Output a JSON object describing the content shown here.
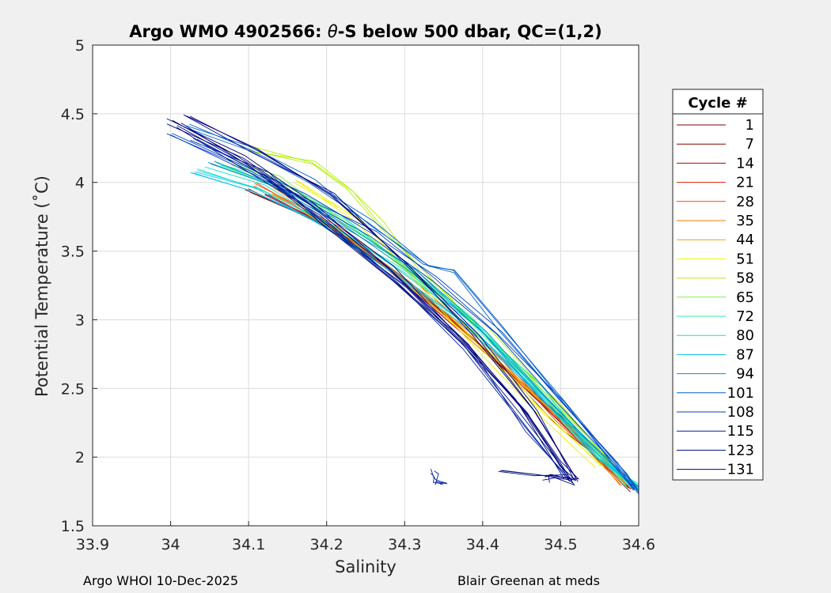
{
  "chart_data": {
    "type": "line",
    "title_prefix": "Argo WMO 4902566: ",
    "title_theta": "θ",
    "title_suffix": "-S below 500 dbar,  QC=(1,2)",
    "xlabel": "Salinity",
    "ylabel": "Potential Temperature (˚C)",
    "xlim": [
      33.9,
      34.6
    ],
    "ylim": [
      1.5,
      5.0
    ],
    "xticks": [
      "33.9",
      "34",
      "34.1",
      "34.2",
      "34.3",
      "34.4",
      "34.5",
      "34.6"
    ],
    "yticks": [
      "1.5",
      "2",
      "2.5",
      "3",
      "3.5",
      "4",
      "4.5",
      "5"
    ],
    "grid": true,
    "legend_title": "Cycle #",
    "legend_position": "right",
    "series": [
      {
        "name": "1",
        "color": "#800000"
      },
      {
        "name": "7",
        "color": "#8b0000"
      },
      {
        "name": "14",
        "color": "#b00000"
      },
      {
        "name": "21",
        "color": "#d42000"
      },
      {
        "name": "28",
        "color": "#e85000"
      },
      {
        "name": "35",
        "color": "#f07800"
      },
      {
        "name": "44",
        "color": "#f0a000"
      },
      {
        "name": "51",
        "color": "#f2f200"
      },
      {
        "name": "58",
        "color": "#b4f000"
      },
      {
        "name": "65",
        "color": "#7cf050"
      },
      {
        "name": "72",
        "color": "#30f0a0"
      },
      {
        "name": "80",
        "color": "#10e0d0"
      },
      {
        "name": "87",
        "color": "#00c0f0"
      },
      {
        "name": "94",
        "color": "#0090c8"
      },
      {
        "name": "101",
        "color": "#0060d0"
      },
      {
        "name": "108",
        "color": "#0040c8"
      },
      {
        "name": "115",
        "color": "#0020a8"
      },
      {
        "name": "123",
        "color": "#001080"
      },
      {
        "name": "131",
        "color": "#000080"
      }
    ],
    "curves": [
      {
        "color": "#800000",
        "s": [
          34.1,
          34.2,
          34.3,
          34.4,
          34.5,
          34.59
        ],
        "t": [
          3.95,
          3.7,
          3.3,
          2.8,
          2.25,
          1.76
        ]
      },
      {
        "color": "#b00000",
        "s": [
          34.12,
          34.22,
          34.32,
          34.42,
          34.52,
          34.59
        ],
        "t": [
          3.92,
          3.62,
          3.2,
          2.7,
          2.2,
          1.78
        ]
      },
      {
        "color": "#e85000",
        "s": [
          34.11,
          34.21,
          34.31,
          34.41,
          34.5,
          34.58
        ],
        "t": [
          3.98,
          3.66,
          3.25,
          2.78,
          2.28,
          1.8
        ]
      },
      {
        "color": "#f0a000",
        "s": [
          34.13,
          34.23,
          34.33,
          34.43,
          34.52,
          34.58
        ],
        "t": [
          3.94,
          3.6,
          3.17,
          2.67,
          2.17,
          1.82
        ]
      },
      {
        "color": "#f2f200",
        "s": [
          34.16,
          34.24,
          34.31,
          34.39,
          34.47,
          34.55
        ],
        "t": [
          4.0,
          3.72,
          3.32,
          2.85,
          2.35,
          1.92
        ]
      },
      {
        "color": "#b4f000",
        "s": [
          34.1,
          34.18,
          34.23,
          34.27,
          34.32,
          34.4,
          34.5,
          34.58
        ],
        "t": [
          4.25,
          4.15,
          3.95,
          3.7,
          3.35,
          2.95,
          2.4,
          1.85
        ]
      },
      {
        "color": "#7cf050",
        "s": [
          34.08,
          34.14,
          34.2,
          34.28,
          34.36,
          34.45,
          34.54,
          34.59
        ],
        "t": [
          4.15,
          4.02,
          3.8,
          3.48,
          3.08,
          2.62,
          2.1,
          1.79
        ]
      },
      {
        "color": "#30f0a0",
        "s": [
          34.06,
          34.14,
          34.22,
          34.3,
          34.38,
          34.46,
          34.54,
          34.59
        ],
        "t": [
          4.12,
          3.98,
          3.74,
          3.42,
          3.02,
          2.56,
          2.06,
          1.8
        ]
      },
      {
        "color": "#10e0d0",
        "s": [
          34.04,
          34.12,
          34.21,
          34.3,
          34.39,
          34.47,
          34.55,
          34.6
        ],
        "t": [
          4.1,
          3.96,
          3.7,
          3.36,
          2.96,
          2.5,
          2.02,
          1.78
        ]
      },
      {
        "color": "#00c0f0",
        "s": [
          34.03,
          34.11,
          34.2,
          34.29,
          34.38,
          34.47,
          34.55,
          34.6
        ],
        "t": [
          4.08,
          3.94,
          3.68,
          3.34,
          2.94,
          2.48,
          2.0,
          1.79
        ]
      },
      {
        "color": "#0090c8",
        "s": [
          34.05,
          34.13,
          34.22,
          34.31,
          34.4,
          34.48,
          34.56,
          34.6
        ],
        "t": [
          4.14,
          3.99,
          3.72,
          3.35,
          2.92,
          2.44,
          1.98,
          1.78
        ]
      },
      {
        "color": "#0060d0",
        "s": [
          34.02,
          34.1,
          34.18,
          34.26,
          34.33,
          34.36,
          34.42,
          34.5,
          34.58,
          34.61
        ],
        "t": [
          4.4,
          4.25,
          4.0,
          3.7,
          3.4,
          3.35,
          2.95,
          2.4,
          1.9,
          1.75
        ]
      },
      {
        "color": "#0040c8",
        "s": [
          34.0,
          34.08,
          34.17,
          34.26,
          34.34,
          34.42,
          34.5,
          34.57,
          34.6
        ],
        "t": [
          4.35,
          4.15,
          3.9,
          3.62,
          3.3,
          2.9,
          2.4,
          1.95,
          1.78
        ]
      },
      {
        "color": "#0020a8",
        "s": [
          34.03,
          34.12,
          34.2,
          34.3,
          34.38,
          34.46,
          34.51,
          34.52
        ],
        "t": [
          4.3,
          4.05,
          3.7,
          3.25,
          2.8,
          2.2,
          1.85,
          1.82
        ]
      },
      {
        "color": "#001080",
        "s": [
          34.01,
          34.1,
          34.19,
          34.28,
          34.37,
          34.44,
          34.49,
          34.51,
          34.47,
          34.42
        ],
        "t": [
          4.42,
          4.1,
          3.75,
          3.3,
          2.85,
          2.4,
          2.0,
          1.85,
          1.88,
          1.9
        ]
      },
      {
        "color": "#000080",
        "s": [
          34.0,
          34.09,
          34.18,
          34.28,
          34.38,
          34.46,
          34.5,
          34.52,
          34.49,
          34.48
        ],
        "t": [
          4.45,
          4.2,
          3.85,
          3.38,
          2.85,
          2.3,
          1.95,
          1.82,
          1.85,
          1.83
        ]
      },
      {
        "color": "#000080",
        "s": [
          34.02,
          34.11,
          34.21,
          34.3,
          34.39,
          34.47,
          34.52
        ],
        "t": [
          4.5,
          4.22,
          3.9,
          3.4,
          2.9,
          2.35,
          1.84
        ]
      },
      {
        "color": "#0020a8",
        "s": [
          34.335,
          34.338,
          34.34,
          34.345,
          34.35
        ],
        "t": [
          1.9,
          1.86,
          1.82,
          1.8,
          1.79
        ]
      }
    ]
  },
  "footer": {
    "left": "Argo WHOI 10-Dec-2025",
    "right": "Blair Greenan at meds"
  }
}
